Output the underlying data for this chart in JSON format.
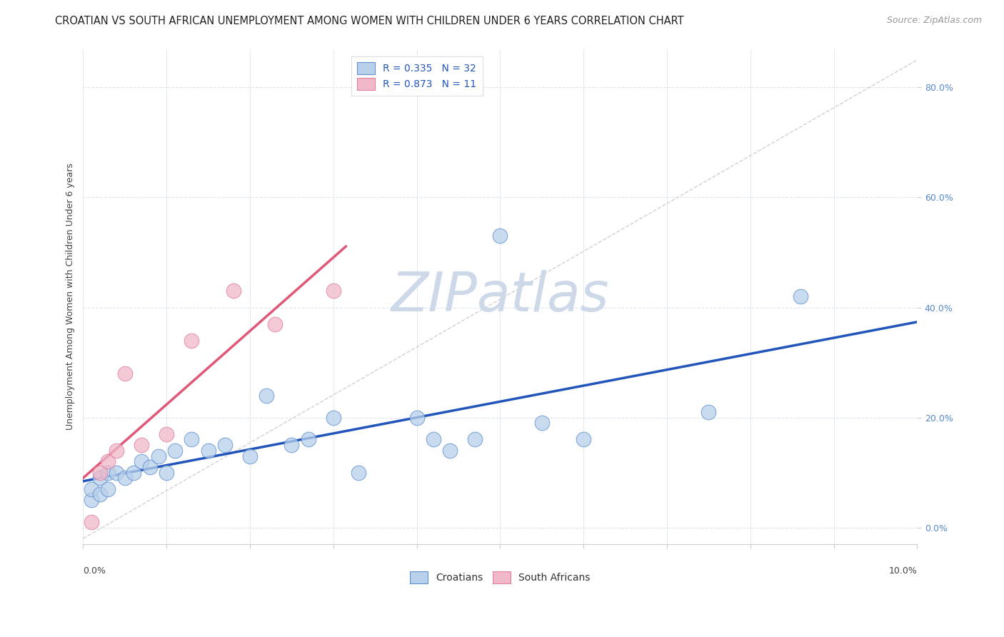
{
  "title": "CROATIAN VS SOUTH AFRICAN UNEMPLOYMENT AMONG WOMEN WITH CHILDREN UNDER 6 YEARS CORRELATION CHART",
  "source": "Source: ZipAtlas.com",
  "ylabel": "Unemployment Among Women with Children Under 6 years",
  "xlim": [
    0.0,
    0.1
  ],
  "ylim": [
    -0.03,
    0.87
  ],
  "yticks": [
    0.0,
    0.2,
    0.4,
    0.6,
    0.8
  ],
  "ytick_labels": [
    "0.0%",
    "20.0%",
    "40.0%",
    "60.0%",
    "80.0%"
  ],
  "xticks": [
    0.0,
    0.01,
    0.02,
    0.03,
    0.04,
    0.05,
    0.06,
    0.07,
    0.08,
    0.09,
    0.1
  ],
  "legend_r1": "R = 0.335",
  "legend_n1": "N = 32",
  "legend_r2": "R = 0.873",
  "legend_n2": "N = 11",
  "blue_dot_color": "#b8d0ea",
  "blue_edge_color": "#6090d0",
  "blue_line_color": "#2255bb",
  "pink_dot_color": "#f0b8c8",
  "pink_edge_color": "#e080a0",
  "pink_line_color": "#e05878",
  "ytick_color": "#5588cc",
  "watermark_color": "#cdd8e8",
  "background_color": "#ffffff",
  "grid_color": "#dde5ef",
  "diag_color": "#cccccc",
  "title_color": "#222222",
  "source_color": "#999999",
  "croatian_x": [
    0.001,
    0.001,
    0.002,
    0.002,
    0.003,
    0.003,
    0.004,
    0.005,
    0.006,
    0.007,
    0.008,
    0.009,
    0.01,
    0.011,
    0.013,
    0.015,
    0.017,
    0.02,
    0.022,
    0.025,
    0.027,
    0.03,
    0.033,
    0.04,
    0.042,
    0.044,
    0.047,
    0.05,
    0.055,
    0.06,
    0.075,
    0.086
  ],
  "croatian_y": [
    0.05,
    0.07,
    0.06,
    0.09,
    0.07,
    0.1,
    0.1,
    0.09,
    0.1,
    0.12,
    0.11,
    0.13,
    0.1,
    0.14,
    0.16,
    0.14,
    0.15,
    0.13,
    0.24,
    0.15,
    0.16,
    0.2,
    0.1,
    0.2,
    0.16,
    0.14,
    0.16,
    0.53,
    0.19,
    0.16,
    0.21,
    0.42
  ],
  "south_african_x": [
    0.001,
    0.002,
    0.003,
    0.004,
    0.005,
    0.007,
    0.01,
    0.013,
    0.018,
    0.023,
    0.03
  ],
  "south_african_y": [
    0.01,
    0.1,
    0.12,
    0.14,
    0.28,
    0.15,
    0.17,
    0.34,
    0.43,
    0.37,
    0.43
  ],
  "title_fontsize": 10.5,
  "axis_label_fontsize": 9,
  "tick_fontsize": 9,
  "legend_fontsize": 10,
  "source_fontsize": 9,
  "dot_size": 220
}
